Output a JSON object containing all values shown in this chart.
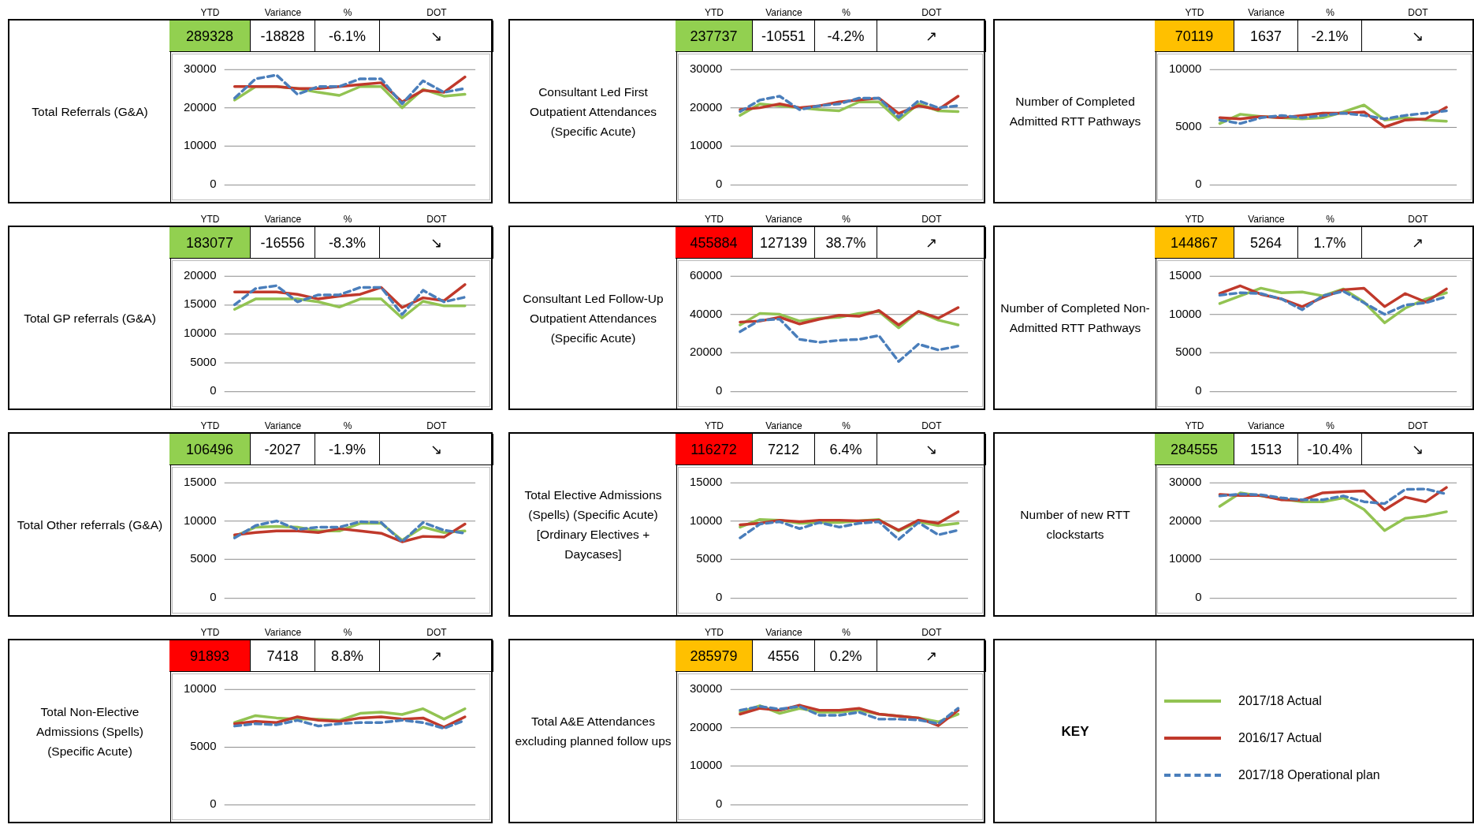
{
  "chart_data": [
    {
      "type": "line",
      "title": "Total Referrals (G&A)",
      "annotations": [
        "YTD",
        "Variance",
        "%",
        "DOT",
        "289328",
        "-18828",
        "-6.1%",
        "↘"
      ],
      "categories": [
        null,
        null,
        null,
        null,
        null,
        null,
        null,
        null,
        null,
        null,
        null,
        null
      ],
      "ylim": [
        0,
        30000
      ],
      "yticks": [
        0,
        10000,
        20000,
        30000
      ],
      "grid": "y",
      "tick_labels": "y",
      "series": [
        {
          "color": "#92c352",
          "values": [
            22000,
            25500,
            25500,
            25000,
            24000,
            23200,
            25500,
            25500,
            20000,
            24800,
            23000,
            23500
          ]
        },
        {
          "color": "#c0392b",
          "values": [
            25500,
            25500,
            25500,
            25000,
            25000,
            25500,
            26000,
            26500,
            21500,
            24500,
            24000,
            28000
          ]
        },
        {
          "color": "#4a7ebb",
          "line_style": "dashed",
          "values": [
            22500,
            27500,
            28500,
            23500,
            25500,
            25500,
            27500,
            27500,
            21000,
            27000,
            24000,
            25000
          ]
        }
      ]
    },
    {
      "type": "line",
      "title": "Consultant Led First Outpatient Attendances (Specific Acute)",
      "annotations": [
        "YTD",
        "Variance",
        "%",
        "DOT",
        "237737",
        "-10551",
        "-4.2%",
        "↗"
      ],
      "categories": [
        null,
        null,
        null,
        null,
        null,
        null,
        null,
        null,
        null,
        null,
        null,
        null
      ],
      "ylim": [
        0,
        30000
      ],
      "yticks": [
        0,
        10000,
        20000,
        30000
      ],
      "grid": "y",
      "tick_labels": "y",
      "series": [
        {
          "color": "#92c352",
          "values": [
            18000,
            21000,
            20500,
            20000,
            19500,
            19200,
            21500,
            21500,
            16800,
            21000,
            19200,
            19000
          ]
        },
        {
          "color": "#c0392b",
          "values": [
            19500,
            20000,
            21000,
            20000,
            20500,
            21500,
            22000,
            22500,
            18500,
            20500,
            19500,
            23000
          ]
        },
        {
          "color": "#4a7ebb",
          "line_style": "dashed",
          "values": [
            19000,
            22000,
            23000,
            19500,
            20500,
            21000,
            22500,
            22500,
            17500,
            21800,
            20000,
            20500
          ]
        }
      ]
    },
    {
      "type": "line",
      "title": "Number of Completed Admitted RTT Pathways",
      "annotations": [
        "YTD",
        "Variance",
        "%",
        "DOT",
        "70119",
        "1637",
        "-2.1%",
        "↘"
      ],
      "categories": [
        null,
        null,
        null,
        null,
        null,
        null,
        null,
        null,
        null,
        null,
        null,
        null
      ],
      "ylim": [
        0,
        10000
      ],
      "yticks": [
        0,
        5000,
        10000
      ],
      "grid": "y",
      "tick_labels": "y",
      "series": [
        {
          "color": "#92c352",
          "values": [
            5300,
            6100,
            5900,
            5800,
            5700,
            5800,
            6300,
            6900,
            5600,
            5800,
            5600,
            5500
          ]
        },
        {
          "color": "#c0392b",
          "values": [
            5800,
            5700,
            5900,
            5800,
            6000,
            6200,
            6200,
            6300,
            5000,
            5600,
            5700,
            6700
          ]
        },
        {
          "color": "#4a7ebb",
          "line_style": "dashed",
          "values": [
            5600,
            5300,
            5800,
            6000,
            5800,
            6000,
            6200,
            6000,
            5700,
            6000,
            6200,
            6400
          ]
        }
      ]
    },
    {
      "type": "line",
      "title": "Total GP referrals (G&A)",
      "annotations": [
        "YTD",
        "Variance",
        "%",
        "DOT",
        "183077",
        "-16556",
        "-8.3%",
        "↘"
      ],
      "categories": [
        null,
        null,
        null,
        null,
        null,
        null,
        null,
        null,
        null,
        null,
        null,
        null
      ],
      "ylim": [
        0,
        20000
      ],
      "yticks": [
        0,
        5000,
        10000,
        15000,
        20000
      ],
      "grid": "y",
      "tick_labels": "y",
      "series": [
        {
          "color": "#92c352",
          "values": [
            14200,
            16000,
            16000,
            16000,
            15500,
            14600,
            16000,
            16000,
            12700,
            15600,
            14800,
            14800
          ]
        },
        {
          "color": "#c0392b",
          "values": [
            17200,
            17200,
            17200,
            16800,
            16000,
            16500,
            16800,
            18000,
            14500,
            16200,
            15700,
            18500
          ]
        },
        {
          "color": "#4a7ebb",
          "line_style": "dashed",
          "values": [
            15000,
            17800,
            18300,
            15500,
            16700,
            16700,
            18000,
            18000,
            13300,
            17500,
            15500,
            16300
          ]
        }
      ]
    },
    {
      "type": "line",
      "title": "Consultant Led Follow-Up Outpatient Attendances (Specific Acute)",
      "annotations": [
        "YTD",
        "Variance",
        "%",
        "DOT",
        "455884",
        "127139",
        "38.7%",
        "↗"
      ],
      "categories": [
        null,
        null,
        null,
        null,
        null,
        null,
        null,
        null,
        null,
        null,
        null,
        null
      ],
      "ylim": [
        0,
        60000
      ],
      "yticks": [
        0,
        20000,
        40000,
        60000
      ],
      "grid": "y",
      "tick_labels": "y",
      "series": [
        {
          "color": "#92c352",
          "values": [
            34500,
            40500,
            40000,
            36500,
            38000,
            38500,
            40500,
            41500,
            33000,
            41500,
            37000,
            34500
          ]
        },
        {
          "color": "#c0392b",
          "values": [
            36000,
            36500,
            38500,
            35000,
            37500,
            39500,
            39000,
            42000,
            34500,
            41500,
            38000,
            43500
          ]
        },
        {
          "color": "#4a7ebb",
          "line_style": "dashed",
          "values": [
            31000,
            37000,
            37500,
            27000,
            25500,
            26500,
            27000,
            29000,
            15500,
            24500,
            21500,
            23500
          ]
        }
      ]
    },
    {
      "type": "line",
      "title": "Number of Completed Non-Admitted RTT Pathways",
      "annotations": [
        "YTD",
        "Variance",
        "%",
        "DOT",
        "144867",
        "5264",
        "1.7%",
        "↗"
      ],
      "categories": [
        null,
        null,
        null,
        null,
        null,
        null,
        null,
        null,
        null,
        null,
        null,
        null
      ],
      "ylim": [
        0,
        15000
      ],
      "yticks": [
        0,
        5000,
        10000,
        15000
      ],
      "grid": "y",
      "tick_labels": "y",
      "series": [
        {
          "color": "#92c352",
          "values": [
            11400,
            12400,
            13400,
            12800,
            12900,
            12400,
            13300,
            11600,
            8900,
            10800,
            12000,
            12800
          ]
        },
        {
          "color": "#c0392b",
          "values": [
            12700,
            13700,
            12600,
            12000,
            11000,
            12200,
            13200,
            13400,
            11000,
            12700,
            11600,
            13300
          ]
        },
        {
          "color": "#4a7ebb",
          "line_style": "dashed",
          "values": [
            12500,
            12800,
            12700,
            12000,
            10600,
            12400,
            13000,
            11500,
            10000,
            11200,
            11500,
            12300
          ]
        }
      ]
    },
    {
      "type": "line",
      "title": "Total Other referrals (G&A)",
      "annotations": [
        "YTD",
        "Variance",
        "%",
        "DOT",
        "106496",
        "-2027",
        "-1.9%",
        "↘"
      ],
      "categories": [
        null,
        null,
        null,
        null,
        null,
        null,
        null,
        null,
        null,
        null,
        null,
        null
      ],
      "ylim": [
        0,
        15000
      ],
      "yticks": [
        0,
        5000,
        10000,
        15000
      ],
      "grid": "y",
      "tick_labels": "y",
      "series": [
        {
          "color": "#92c352",
          "values": [
            8000,
            9200,
            9300,
            9200,
            8700,
            8700,
            9700,
            9700,
            7500,
            9200,
            8500,
            8700
          ]
        },
        {
          "color": "#c0392b",
          "values": [
            8200,
            8500,
            8700,
            8700,
            8500,
            9000,
            8700,
            8400,
            7300,
            8000,
            7900,
            9600
          ]
        },
        {
          "color": "#4a7ebb",
          "line_style": "dashed",
          "values": [
            7800,
            9400,
            10000,
            8900,
            9200,
            9200,
            9900,
            9800,
            7300,
            9800,
            8800,
            8400
          ]
        }
      ]
    },
    {
      "type": "line",
      "title": "Total Elective Admissions (Spells) (Specific Acute) [Ordinary Electives + Daycases]",
      "annotations": [
        "YTD",
        "Variance",
        "%",
        "DOT",
        "116272",
        "7212",
        "6.4%",
        "↘"
      ],
      "categories": [
        null,
        null,
        null,
        null,
        null,
        null,
        null,
        null,
        null,
        null,
        null,
        null
      ],
      "ylim": [
        0,
        15000
      ],
      "yticks": [
        0,
        5000,
        10000,
        15000
      ],
      "grid": "y",
      "tick_labels": "y",
      "series": [
        {
          "color": "#92c352",
          "values": [
            9200,
            10200,
            10100,
            9700,
            9800,
            9800,
            10000,
            10200,
            8700,
            9900,
            9400,
            9700
          ]
        },
        {
          "color": "#c0392b",
          "values": [
            9500,
            9700,
            10100,
            9900,
            10100,
            10100,
            10000,
            10100,
            8800,
            10100,
            9700,
            11200
          ]
        },
        {
          "color": "#4a7ebb",
          "line_style": "dashed",
          "values": [
            7800,
            9600,
            9900,
            9000,
            9800,
            9200,
            9700,
            9900,
            7600,
            9800,
            8200,
            8800
          ]
        }
      ]
    },
    {
      "type": "line",
      "title": "Number of new RTT clockstarts",
      "annotations": [
        "YTD",
        "Variance",
        "%",
        "DOT",
        "284555",
        "1513",
        "-10.4%",
        "↘"
      ],
      "categories": [
        null,
        null,
        null,
        null,
        null,
        null,
        null,
        null,
        null,
        null,
        null,
        null
      ],
      "ylim": [
        0,
        30000
      ],
      "yticks": [
        0,
        10000,
        20000,
        30000
      ],
      "grid": "y",
      "tick_labels": "y",
      "series": [
        {
          "color": "#92c352",
          "values": [
            23800,
            27300,
            26500,
            25700,
            25000,
            25000,
            26000,
            23000,
            17500,
            20700,
            21300,
            22400
          ]
        },
        {
          "color": "#c0392b",
          "values": [
            26900,
            26600,
            26600,
            25500,
            25400,
            27300,
            27600,
            27800,
            22900,
            26200,
            25000,
            28700
          ]
        },
        {
          "color": "#4a7ebb",
          "line_style": "dashed",
          "values": [
            26500,
            27000,
            26800,
            26000,
            25500,
            25500,
            26500,
            25000,
            24500,
            28200,
            28300,
            27000
          ]
        }
      ]
    },
    {
      "type": "line",
      "title": "Total Non-Elective Admissions (Spells) (Specific Acute)",
      "annotations": [
        "YTD",
        "Variance",
        "%",
        "DOT",
        "91893",
        "7418",
        "8.8%",
        "↗"
      ],
      "categories": [
        null,
        null,
        null,
        null,
        null,
        null,
        null,
        null,
        null,
        null,
        null,
        null
      ],
      "ylim": [
        0,
        10000
      ],
      "yticks": [
        0,
        5000,
        10000
      ],
      "grid": "y",
      "tick_labels": "y",
      "series": [
        {
          "color": "#92c352",
          "values": [
            7100,
            7700,
            7500,
            7400,
            7400,
            7300,
            7900,
            8000,
            7800,
            8300,
            7400,
            8300
          ]
        },
        {
          "color": "#c0392b",
          "values": [
            7000,
            7200,
            7100,
            7600,
            7300,
            7200,
            7500,
            7600,
            7400,
            7500,
            6700,
            7600
          ]
        },
        {
          "color": "#4a7ebb",
          "line_style": "dashed",
          "values": [
            6800,
            7000,
            6900,
            7300,
            6800,
            7000,
            7100,
            7100,
            7300,
            7100,
            6600,
            7300
          ]
        }
      ]
    },
    {
      "type": "line",
      "title": "Total A&E Attendances excluding planned follow ups",
      "annotations": [
        "YTD",
        "Variance",
        "%",
        "DOT",
        "285979",
        "4556",
        "0.2%",
        "↗"
      ],
      "categories": [
        null,
        null,
        null,
        null,
        null,
        null,
        null,
        null,
        null,
        null,
        null,
        null
      ],
      "ylim": [
        0,
        30000
      ],
      "yticks": [
        0,
        10000,
        20000,
        30000
      ],
      "grid": "y",
      "tick_labels": "y",
      "legend": "right",
      "legend_title": "KEY",
      "series": [
        {
          "name": "2017/18 Actual",
          "color": "#92c352",
          "values": [
            24000,
            25700,
            23700,
            25000,
            24000,
            24000,
            24500,
            23500,
            23000,
            22500,
            21500,
            23500
          ]
        },
        {
          "name": "2016/17 Actual",
          "color": "#c0392b",
          "values": [
            23500,
            25000,
            24500,
            25800,
            24500,
            24500,
            25000,
            23500,
            23000,
            22500,
            20500,
            24500
          ]
        },
        {
          "name": "2017/18  Operational plan",
          "color": "#4a7ebb",
          "line_style": "dashed",
          "values": [
            24500,
            25500,
            24800,
            25500,
            23200,
            23200,
            24000,
            22200,
            22200,
            22000,
            21000,
            25000
          ]
        }
      ]
    }
  ]
}
